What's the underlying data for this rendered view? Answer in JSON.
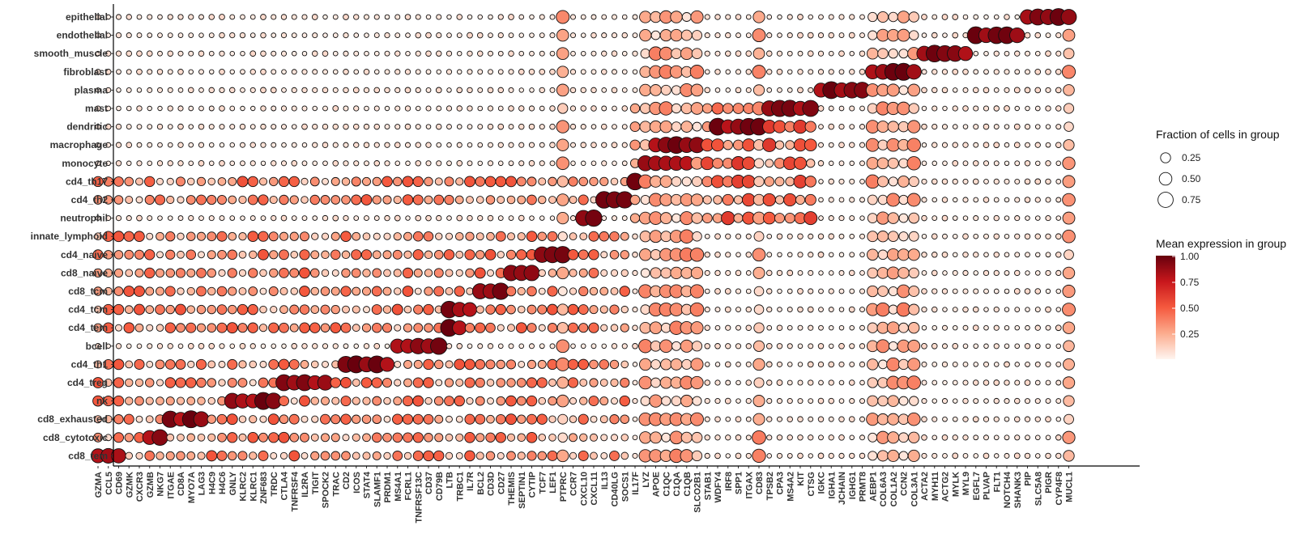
{
  "chart_data": {
    "type": "dotplot",
    "genes": [
      "GZMA",
      "CCL5",
      "CD69",
      "GZMK",
      "CXCR3",
      "GZMB",
      "NKG7",
      "ITGAE",
      "CD8A",
      "MYO7A",
      "LAG3",
      "H4C9",
      "H4C6",
      "GNLY",
      "KLRC2",
      "KLRC1",
      "ZNF683",
      "TRDC",
      "CTLA4",
      "TNFRSF4",
      "IL2RA",
      "TIGIT",
      "SPOCK2",
      "TRAC",
      "CD2",
      "ICOS",
      "STAT4",
      "SLAMF1",
      "PRDM1",
      "MS4A1",
      "FCRL1",
      "TNFRSF13C",
      "CD37",
      "CD79B",
      "LTB",
      "TRBC1",
      "IL7R",
      "BCL2",
      "CD3D",
      "CD27",
      "THEMIS",
      "SEPTIN1",
      "CYTIP",
      "TCF7",
      "LEF1",
      "PTPRC",
      "CCR7",
      "CXCL10",
      "CXCL11",
      "IL13",
      "CD40LG",
      "SOCS1",
      "IL17F",
      "LYZ",
      "APOE",
      "C1QC",
      "C1QA",
      "C1QB",
      "SLCO2B1",
      "STAB1",
      "WDFY4",
      "IRF8",
      "SPP1",
      "ITGAX",
      "CD83",
      "TPSB2",
      "CPA3",
      "MS4A2",
      "KIT",
      "CTSG",
      "IGKC",
      "IGHA1",
      "JCHAIN",
      "IGHG1",
      "PRMT8",
      "AEBP1",
      "COL6A3",
      "COL1A2",
      "CCN2",
      "COL3A1",
      "ACTA2",
      "MYH11",
      "ACTG2",
      "MYLK",
      "MYL9",
      "EGFL7",
      "PLVAP",
      "FLT1",
      "NOTCH4",
      "SHANK3",
      "PIP",
      "SLC5A8",
      "PIGR",
      "CYP4F8",
      "MUCL1"
    ],
    "groups": [
      "epithelial",
      "endothelial",
      "smooth_muscle",
      "fibroblast",
      "plasma",
      "mast",
      "dendritic",
      "macrophage",
      "monocyte",
      "cd4_th17",
      "cd4_th2",
      "neutrophil",
      "innate_lymphoid",
      "cd4_naive",
      "cd8_naive",
      "cd8_tcm",
      "cd4_tcm",
      "cd4_tem",
      "bcell",
      "cd4_th1",
      "cd4_treg",
      "nk",
      "cd8_exhausted",
      "cd8_cytotoxic",
      "cd8_tem"
    ],
    "marker_blocks": [
      {
        "group": "epithelial",
        "genes": [
          "PIP",
          "SLC5A8",
          "PIGR",
          "CYP4F8",
          "MUCL1"
        ]
      },
      {
        "group": "endothelial",
        "genes": [
          "EGFL7",
          "PLVAP",
          "FLT1",
          "NOTCH4",
          "SHANK3"
        ]
      },
      {
        "group": "smooth_muscle",
        "genes": [
          "ACTA2",
          "MYH11",
          "ACTG2",
          "MYLK",
          "MYL9"
        ]
      },
      {
        "group": "fibroblast",
        "genes": [
          "AEBP1",
          "COL6A3",
          "COL1A2",
          "CCN2",
          "COL3A1"
        ]
      },
      {
        "group": "plasma",
        "genes": [
          "IGKC",
          "IGHA1",
          "JCHAIN",
          "IGHG1",
          "PRMT8"
        ]
      },
      {
        "group": "mast",
        "genes": [
          "TPSB2",
          "CPA3",
          "MS4A2",
          "KIT",
          "CTSG"
        ]
      },
      {
        "group": "dendritic",
        "genes": [
          "WDFY4",
          "IRF8",
          "SPP1",
          "ITGAX",
          "CD83"
        ]
      },
      {
        "group": "macrophage",
        "genes": [
          "APOE",
          "C1QC",
          "C1QA",
          "C1QB",
          "SLCO2B1"
        ]
      },
      {
        "group": "monocyte",
        "genes": [
          "LYZ",
          "APOE",
          "C1QC",
          "C1QA",
          "C1QB"
        ]
      },
      {
        "group": "cd4_th17",
        "genes": [
          "IL17F"
        ]
      },
      {
        "group": "cd4_th2",
        "genes": [
          "IL13",
          "CD40LG",
          "SOCS1"
        ]
      },
      {
        "group": "neutrophil",
        "genes": [
          "CXCL10",
          "CXCL11"
        ]
      },
      {
        "group": "cd4_naive",
        "genes": [
          "TCF7",
          "LEF1",
          "PTPRC"
        ]
      },
      {
        "group": "cd8_naive",
        "genes": [
          "THEMIS",
          "SEPTIN1",
          "CYTIP"
        ]
      },
      {
        "group": "cd8_tcm",
        "genes": [
          "BCL2",
          "CD3D",
          "CD27"
        ]
      },
      {
        "group": "cd4_tcm",
        "genes": [
          "LTB",
          "TRBC1",
          "IL7R"
        ]
      },
      {
        "group": "cd4_tem",
        "genes": [
          "LTB",
          "TRBC1"
        ]
      },
      {
        "group": "bcell",
        "genes": [
          "MS4A1",
          "FCRL1",
          "TNFRSF13C",
          "CD37",
          "CD79B"
        ]
      },
      {
        "group": "cd4_th1",
        "genes": [
          "CD2",
          "ICOS",
          "STAT4",
          "SLAMF1",
          "PRDM1"
        ]
      },
      {
        "group": "cd4_treg",
        "genes": [
          "CTLA4",
          "TNFRSF4",
          "IL2RA",
          "TIGIT",
          "SPOCK2"
        ]
      },
      {
        "group": "nk",
        "genes": [
          "GNLY",
          "KLRC2",
          "KLRC1",
          "ZNF683",
          "TRDC"
        ]
      },
      {
        "group": "cd8_exhausted",
        "genes": [
          "ITGAE",
          "CD8A",
          "MYO7A",
          "LAG3"
        ]
      },
      {
        "group": "cd8_cytotoxic",
        "genes": [
          "GZMB",
          "NKG7"
        ]
      },
      {
        "group": "cd8_tem",
        "genes": [
          "GZMA",
          "CCL5",
          "CD69"
        ]
      }
    ],
    "size_legend": {
      "title": "Fraction of cells in group",
      "values": [
        "0.25",
        "0.50",
        "0.75"
      ]
    },
    "color_legend": {
      "title": "Mean expression in group",
      "ticks": [
        "1.00",
        "0.75",
        "0.50",
        "0.25"
      ],
      "low_color": "#fff5f0",
      "high_color": "#67000d"
    }
  }
}
